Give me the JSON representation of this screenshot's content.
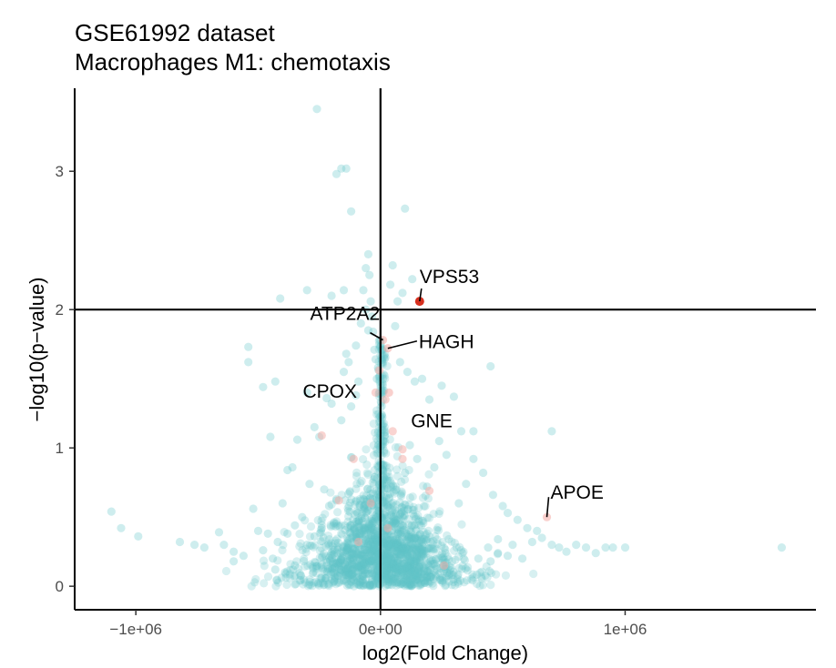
{
  "chart_data": {
    "type": "scatter",
    "title": "GSE61992 dataset",
    "subtitle": "Macrophages M1: chemotaxis",
    "xlabel": "log2(Fold Change)",
    "ylabel": "−log10(p−value)",
    "xlim": [
      -1250000,
      1780000
    ],
    "ylim": [
      -0.17,
      3.6
    ],
    "x_ticks": [
      -1000000,
      0,
      1000000
    ],
    "x_tick_labels": [
      "−1e+06",
      "0e+00",
      "1e+06"
    ],
    "y_ticks": [
      0,
      1,
      2,
      3
    ],
    "y_tick_labels": [
      "0",
      "1",
      "2",
      "3"
    ],
    "grid": false,
    "legend": "none",
    "reference_lines": {
      "x": 0,
      "y": 2
    },
    "colors": {
      "background_points": "#5ec2c6",
      "highlight_points": "#f4a9a4",
      "significant_point": "#d7301f",
      "axis": "#000000"
    },
    "labeled_genes": [
      {
        "gene": "VPS53",
        "x": 160000,
        "y": 2.06,
        "significant": true
      },
      {
        "gene": "ATP2A2",
        "x": 10000,
        "y": 1.78,
        "significant": false
      },
      {
        "gene": "HAGH",
        "x": 30000,
        "y": 1.72,
        "significant": false
      },
      {
        "gene": "CPOX",
        "x": -5000,
        "y": 1.56,
        "significant": false
      },
      {
        "gene": "GNE",
        "x": 35000,
        "y": 1.4,
        "significant": false
      },
      {
        "gene": "APOE",
        "x": 680000,
        "y": 0.5,
        "significant": false
      }
    ],
    "scattered_points": [
      [
        -1100000,
        0.54
      ],
      [
        -1060000,
        0.42
      ],
      [
        -990000,
        0.36
      ],
      [
        -820000,
        0.32
      ],
      [
        -760000,
        0.3
      ],
      [
        -720000,
        0.28
      ],
      [
        -660000,
        0.39
      ],
      [
        -640000,
        0.3
      ],
      [
        -600000,
        0.25
      ],
      [
        -540000,
        1.73
      ],
      [
        -540000,
        1.62
      ],
      [
        -520000,
        0.56
      ],
      [
        -480000,
        1.44
      ],
      [
        -450000,
        1.08
      ],
      [
        -430000,
        1.48
      ],
      [
        -400000,
        0.6
      ],
      [
        -380000,
        0.84
      ],
      [
        -360000,
        0.86
      ],
      [
        -340000,
        1.06
      ],
      [
        -320000,
        0.5
      ],
      [
        -300000,
        1.4
      ],
      [
        -290000,
        0.74
      ],
      [
        -270000,
        1.15
      ],
      [
        -250000,
        1.08
      ],
      [
        -230000,
        0.7
      ],
      [
        -220000,
        1.36
      ],
      [
        -210000,
        0.58
      ],
      [
        -200000,
        1.32
      ],
      [
        -180000,
        0.62
      ],
      [
        -160000,
        1.2
      ],
      [
        -150000,
        1.55
      ],
      [
        -130000,
        1.62
      ],
      [
        -120000,
        1.3
      ],
      [
        -100000,
        1.38
      ],
      [
        -90000,
        1.48
      ],
      [
        -80000,
        1.9
      ],
      [
        -70000,
        2.14
      ],
      [
        -60000,
        2.3
      ],
      [
        -50000,
        2.4
      ],
      [
        -45000,
        2.25
      ],
      [
        -40000,
        2.06
      ],
      [
        -35000,
        1.95
      ],
      [
        -150000,
        2.14
      ],
      [
        -200000,
        2.1
      ],
      [
        -300000,
        2.14
      ],
      [
        -410000,
        2.08
      ],
      [
        -140000,
        3.02
      ],
      [
        -160000,
        3.02
      ],
      [
        -180000,
        2.98
      ],
      [
        -120000,
        2.71
      ],
      [
        -260000,
        3.45
      ],
      [
        -30000,
        1.84
      ],
      [
        -25000,
        1.71
      ],
      [
        -20000,
        1.64
      ],
      [
        -15000,
        1.5
      ],
      [
        -10000,
        1.58
      ],
      [
        -60000,
        2.0
      ],
      [
        -50000,
        1.85
      ],
      [
        -100000,
        1.74
      ],
      [
        -140000,
        1.68
      ],
      [
        40000,
        2.18
      ],
      [
        50000,
        2.32
      ],
      [
        70000,
        2.06
      ],
      [
        90000,
        2.12
      ],
      [
        130000,
        2.22
      ],
      [
        100000,
        2.73
      ],
      [
        60000,
        1.88
      ],
      [
        80000,
        1.62
      ],
      [
        110000,
        1.55
      ],
      [
        140000,
        1.48
      ],
      [
        170000,
        1.5
      ],
      [
        200000,
        1.35
      ],
      [
        250000,
        1.45
      ],
      [
        300000,
        1.37
      ],
      [
        330000,
        1.12
      ],
      [
        380000,
        1.12
      ],
      [
        420000,
        0.82
      ],
      [
        460000,
        0.66
      ],
      [
        500000,
        0.58
      ],
      [
        520000,
        0.53
      ],
      [
        560000,
        0.48
      ],
      [
        600000,
        0.42
      ],
      [
        640000,
        0.4
      ],
      [
        700000,
        0.3
      ],
      [
        730000,
        0.28
      ],
      [
        760000,
        0.25
      ],
      [
        800000,
        0.3
      ],
      [
        840000,
        0.28
      ],
      [
        880000,
        0.24
      ],
      [
        920000,
        0.28
      ],
      [
        950000,
        0.28
      ],
      [
        1000000,
        0.28
      ],
      [
        700000,
        1.12
      ],
      [
        1640000,
        0.28
      ],
      [
        450000,
        1.59
      ],
      [
        380000,
        0.92
      ],
      [
        350000,
        0.74
      ],
      [
        320000,
        0.6
      ],
      [
        270000,
        0.95
      ],
      [
        240000,
        1.05
      ],
      [
        220000,
        0.86
      ],
      [
        190000,
        0.72
      ],
      [
        150000,
        0.92
      ],
      [
        120000,
        1.02
      ],
      [
        100000,
        0.82
      ],
      [
        -600000,
        0.18
      ],
      [
        -560000,
        0.22
      ],
      [
        -480000,
        0.26
      ],
      [
        -440000,
        0.2
      ],
      [
        -420000,
        0.32
      ],
      [
        -380000,
        0.38
      ],
      [
        -350000,
        0.44
      ],
      [
        -300000,
        0.3
      ],
      [
        -270000,
        0.36
      ],
      [
        -240000,
        0.42
      ],
      [
        -500000,
        0.4
      ],
      [
        -460000,
        0.38
      ],
      [
        -430000,
        0.12
      ],
      [
        -390000,
        0.1
      ],
      [
        -350000,
        0.15
      ],
      [
        400000,
        0.2
      ],
      [
        450000,
        0.18
      ],
      [
        480000,
        0.24
      ],
      [
        520000,
        0.22
      ],
      [
        580000,
        0.2
      ],
      [
        620000,
        0.32
      ],
      [
        660000,
        0.35
      ],
      [
        540000,
        0.3
      ],
      [
        440000,
        0.28
      ],
      [
        480000,
        0.34
      ]
    ],
    "highlighted_points": [
      [
        -240000,
        1.09
      ],
      [
        -110000,
        0.92
      ],
      [
        -20000,
        1.4
      ],
      [
        20000,
        1.35
      ],
      [
        90000,
        0.99
      ],
      [
        90000,
        0.92
      ],
      [
        200000,
        0.69
      ],
      [
        260000,
        0.15
      ],
      [
        -170000,
        0.62
      ],
      [
        50000,
        1.12
      ],
      [
        -40000,
        0.6
      ],
      [
        30000,
        0.42
      ],
      [
        -90000,
        0.32
      ]
    ],
    "dense_cloud": {
      "description_note": "dense core near x=0 with most points y<0.6, spread wider at low y",
      "count": 1700,
      "seed": 61992
    }
  }
}
